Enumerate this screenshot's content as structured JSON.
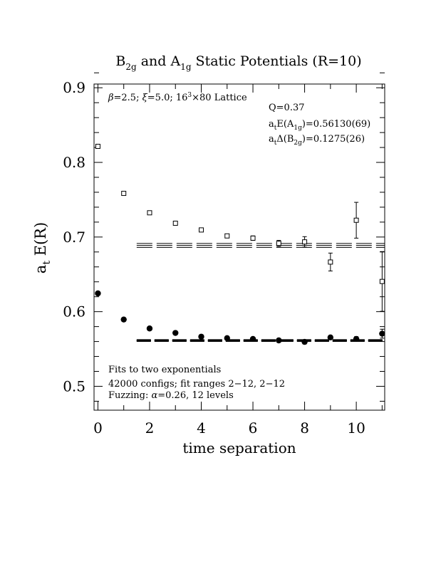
{
  "chart_data": {
    "type": "scatter",
    "title": {
      "main": "B",
      "sub1": "2g",
      "mid": " and A",
      "sub2": "1g",
      "tail": " Static Potentials (R=10)"
    },
    "xlabel": "time separation",
    "ylabel": {
      "main": "a",
      "sub": "t",
      "tail": " E(R)"
    },
    "xlim": [
      -0.15,
      11.1
    ],
    "ylim": [
      0.468,
      0.905
    ],
    "xticks": [
      0,
      2,
      4,
      6,
      8,
      10
    ],
    "xtick_labels": [
      "0",
      "2",
      "4",
      "6",
      "8",
      "10"
    ],
    "yticks": [
      0.5,
      0.6,
      0.7,
      0.8,
      0.9
    ],
    "ytick_labels": [
      "0.5",
      "0.6",
      "0.7",
      "0.8",
      "0.9"
    ],
    "annotations": {
      "lattice": {
        "beta": "β",
        "a": "=2.5; ",
        "xi": "ξ",
        "b": "=5.0; 16",
        "sup": "3",
        "c": "×80 Lattice"
      },
      "q": "Q=0.37",
      "a1g": {
        "a": "a",
        "sub1": "t",
        "b": "E(A",
        "sub2": "1g",
        "c": ")=0.56130(69)"
      },
      "b2g": {
        "a": "a",
        "sub1": "t",
        "b": "Δ(B",
        "sub2": "2g",
        "c": ")=0.1275(26)"
      },
      "fits": "Fits to two exponentials",
      "configs": "42000 configs; fit ranges 2−12, 2−12",
      "fuzzing": {
        "a": "Fuzzing: ",
        "alpha": "α",
        "b": "=0.26, 12 levels"
      }
    },
    "series": [
      {
        "marker": "open-square",
        "points": [
          {
            "x": 0,
            "y": 0.8215,
            "err": 0.001
          },
          {
            "x": 1,
            "y": 0.7585,
            "err": 0.001
          },
          {
            "x": 2,
            "y": 0.7325,
            "err": 0.001
          },
          {
            "x": 3,
            "y": 0.7185,
            "err": 0.0015
          },
          {
            "x": 4,
            "y": 0.7095,
            "err": 0.0015
          },
          {
            "x": 5,
            "y": 0.7015,
            "err": 0.002
          },
          {
            "x": 6,
            "y": 0.6985,
            "err": 0.003
          },
          {
            "x": 7,
            "y": 0.6915,
            "err": 0.004
          },
          {
            "x": 8,
            "y": 0.6935,
            "err": 0.007
          },
          {
            "x": 9,
            "y": 0.6665,
            "err": 0.012
          },
          {
            "x": 10,
            "y": 0.7225,
            "err": 0.024
          },
          {
            "x": 11,
            "y": 0.6405,
            "err": 0.04
          }
        ]
      },
      {
        "marker": "filled-circle",
        "points": [
          {
            "x": 0,
            "y": 0.6245,
            "err": 0.001
          },
          {
            "x": 1,
            "y": 0.5895,
            "err": 0.001
          },
          {
            "x": 2,
            "y": 0.5775,
            "err": 0.001
          },
          {
            "x": 3,
            "y": 0.5715,
            "err": 0.001
          },
          {
            "x": 4,
            "y": 0.5665,
            "err": 0.001
          },
          {
            "x": 5,
            "y": 0.5645,
            "err": 0.001
          },
          {
            "x": 6,
            "y": 0.5635,
            "err": 0.001
          },
          {
            "x": 7,
            "y": 0.5615,
            "err": 0.001
          },
          {
            "x": 8,
            "y": 0.5595,
            "err": 0.002
          },
          {
            "x": 9,
            "y": 0.5655,
            "err": 0.002
          },
          {
            "x": 10,
            "y": 0.5635,
            "err": 0.003
          },
          {
            "x": 11,
            "y": 0.5705,
            "err": 0.006
          }
        ]
      }
    ],
    "fit_bands": [
      {
        "x_from": 1.5,
        "x_to": 11.1,
        "value": 0.6888,
        "err": 0.0026
      },
      {
        "x_from": 1.5,
        "x_to": 11.1,
        "value": 0.5613,
        "err": 0.00069
      }
    ]
  }
}
